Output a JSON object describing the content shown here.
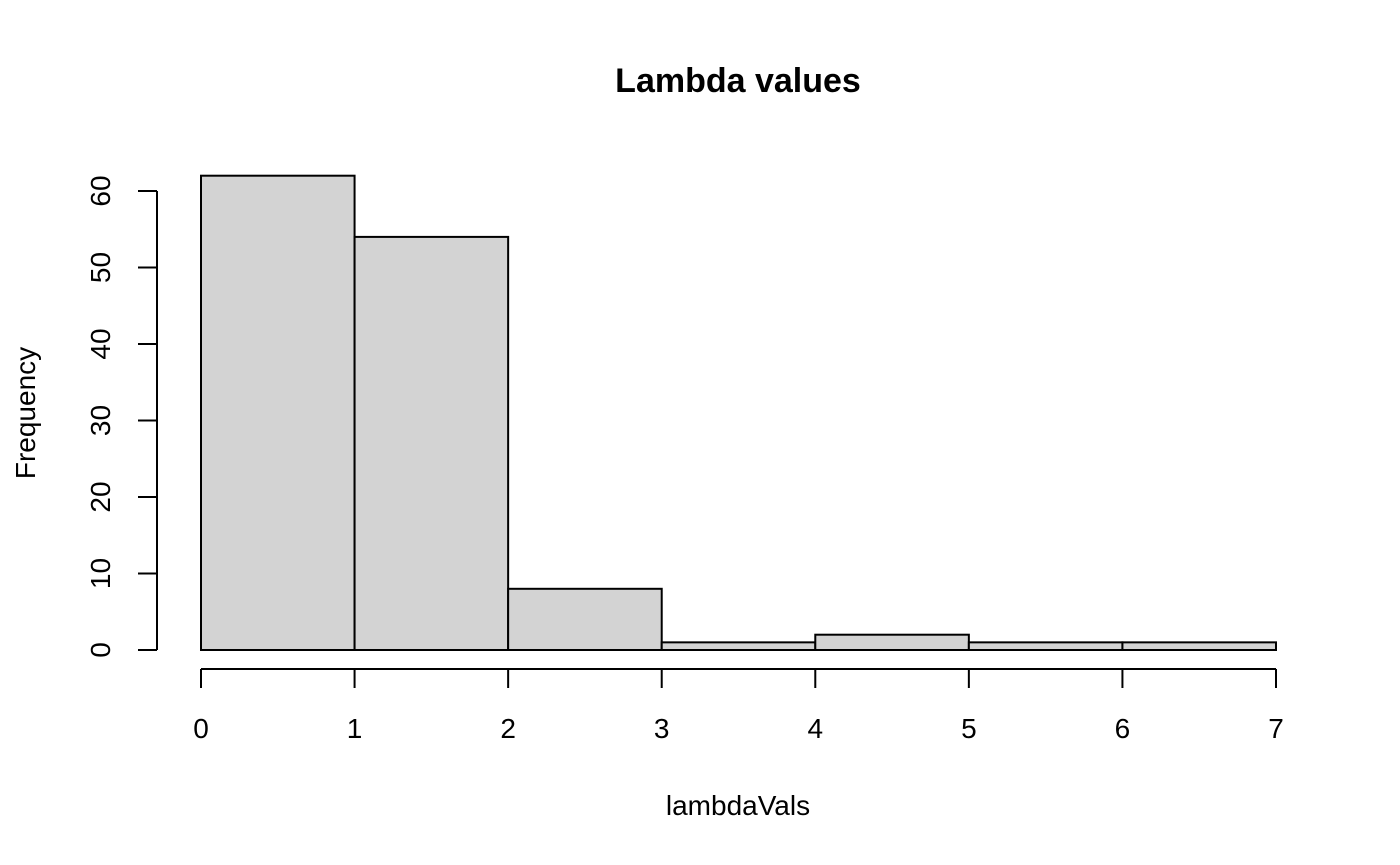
{
  "chart_data": {
    "type": "bar",
    "histogram": true,
    "title": "Lambda values",
    "xlabel": "lambdaVals",
    "ylabel": "Frequency",
    "bins": [
      {
        "from": 0,
        "to": 1,
        "count": 62
      },
      {
        "from": 1,
        "to": 2,
        "count": 54
      },
      {
        "from": 2,
        "to": 3,
        "count": 8
      },
      {
        "from": 3,
        "to": 4,
        "count": 1
      },
      {
        "from": 4,
        "to": 5,
        "count": 2
      },
      {
        "from": 5,
        "to": 6,
        "count": 1
      },
      {
        "from": 6,
        "to": 7,
        "count": 1
      }
    ],
    "xlim": [
      0,
      7
    ],
    "ylim": [
      0,
      62
    ],
    "x_ticks": [
      "0",
      "1",
      "2",
      "3",
      "4",
      "5",
      "6",
      "7"
    ],
    "y_ticks": [
      "0",
      "10",
      "20",
      "30",
      "40",
      "50",
      "60"
    ],
    "grid": false,
    "legend": "none",
    "bar_fill": "#d3d3d3",
    "bar_stroke": "#000000"
  }
}
